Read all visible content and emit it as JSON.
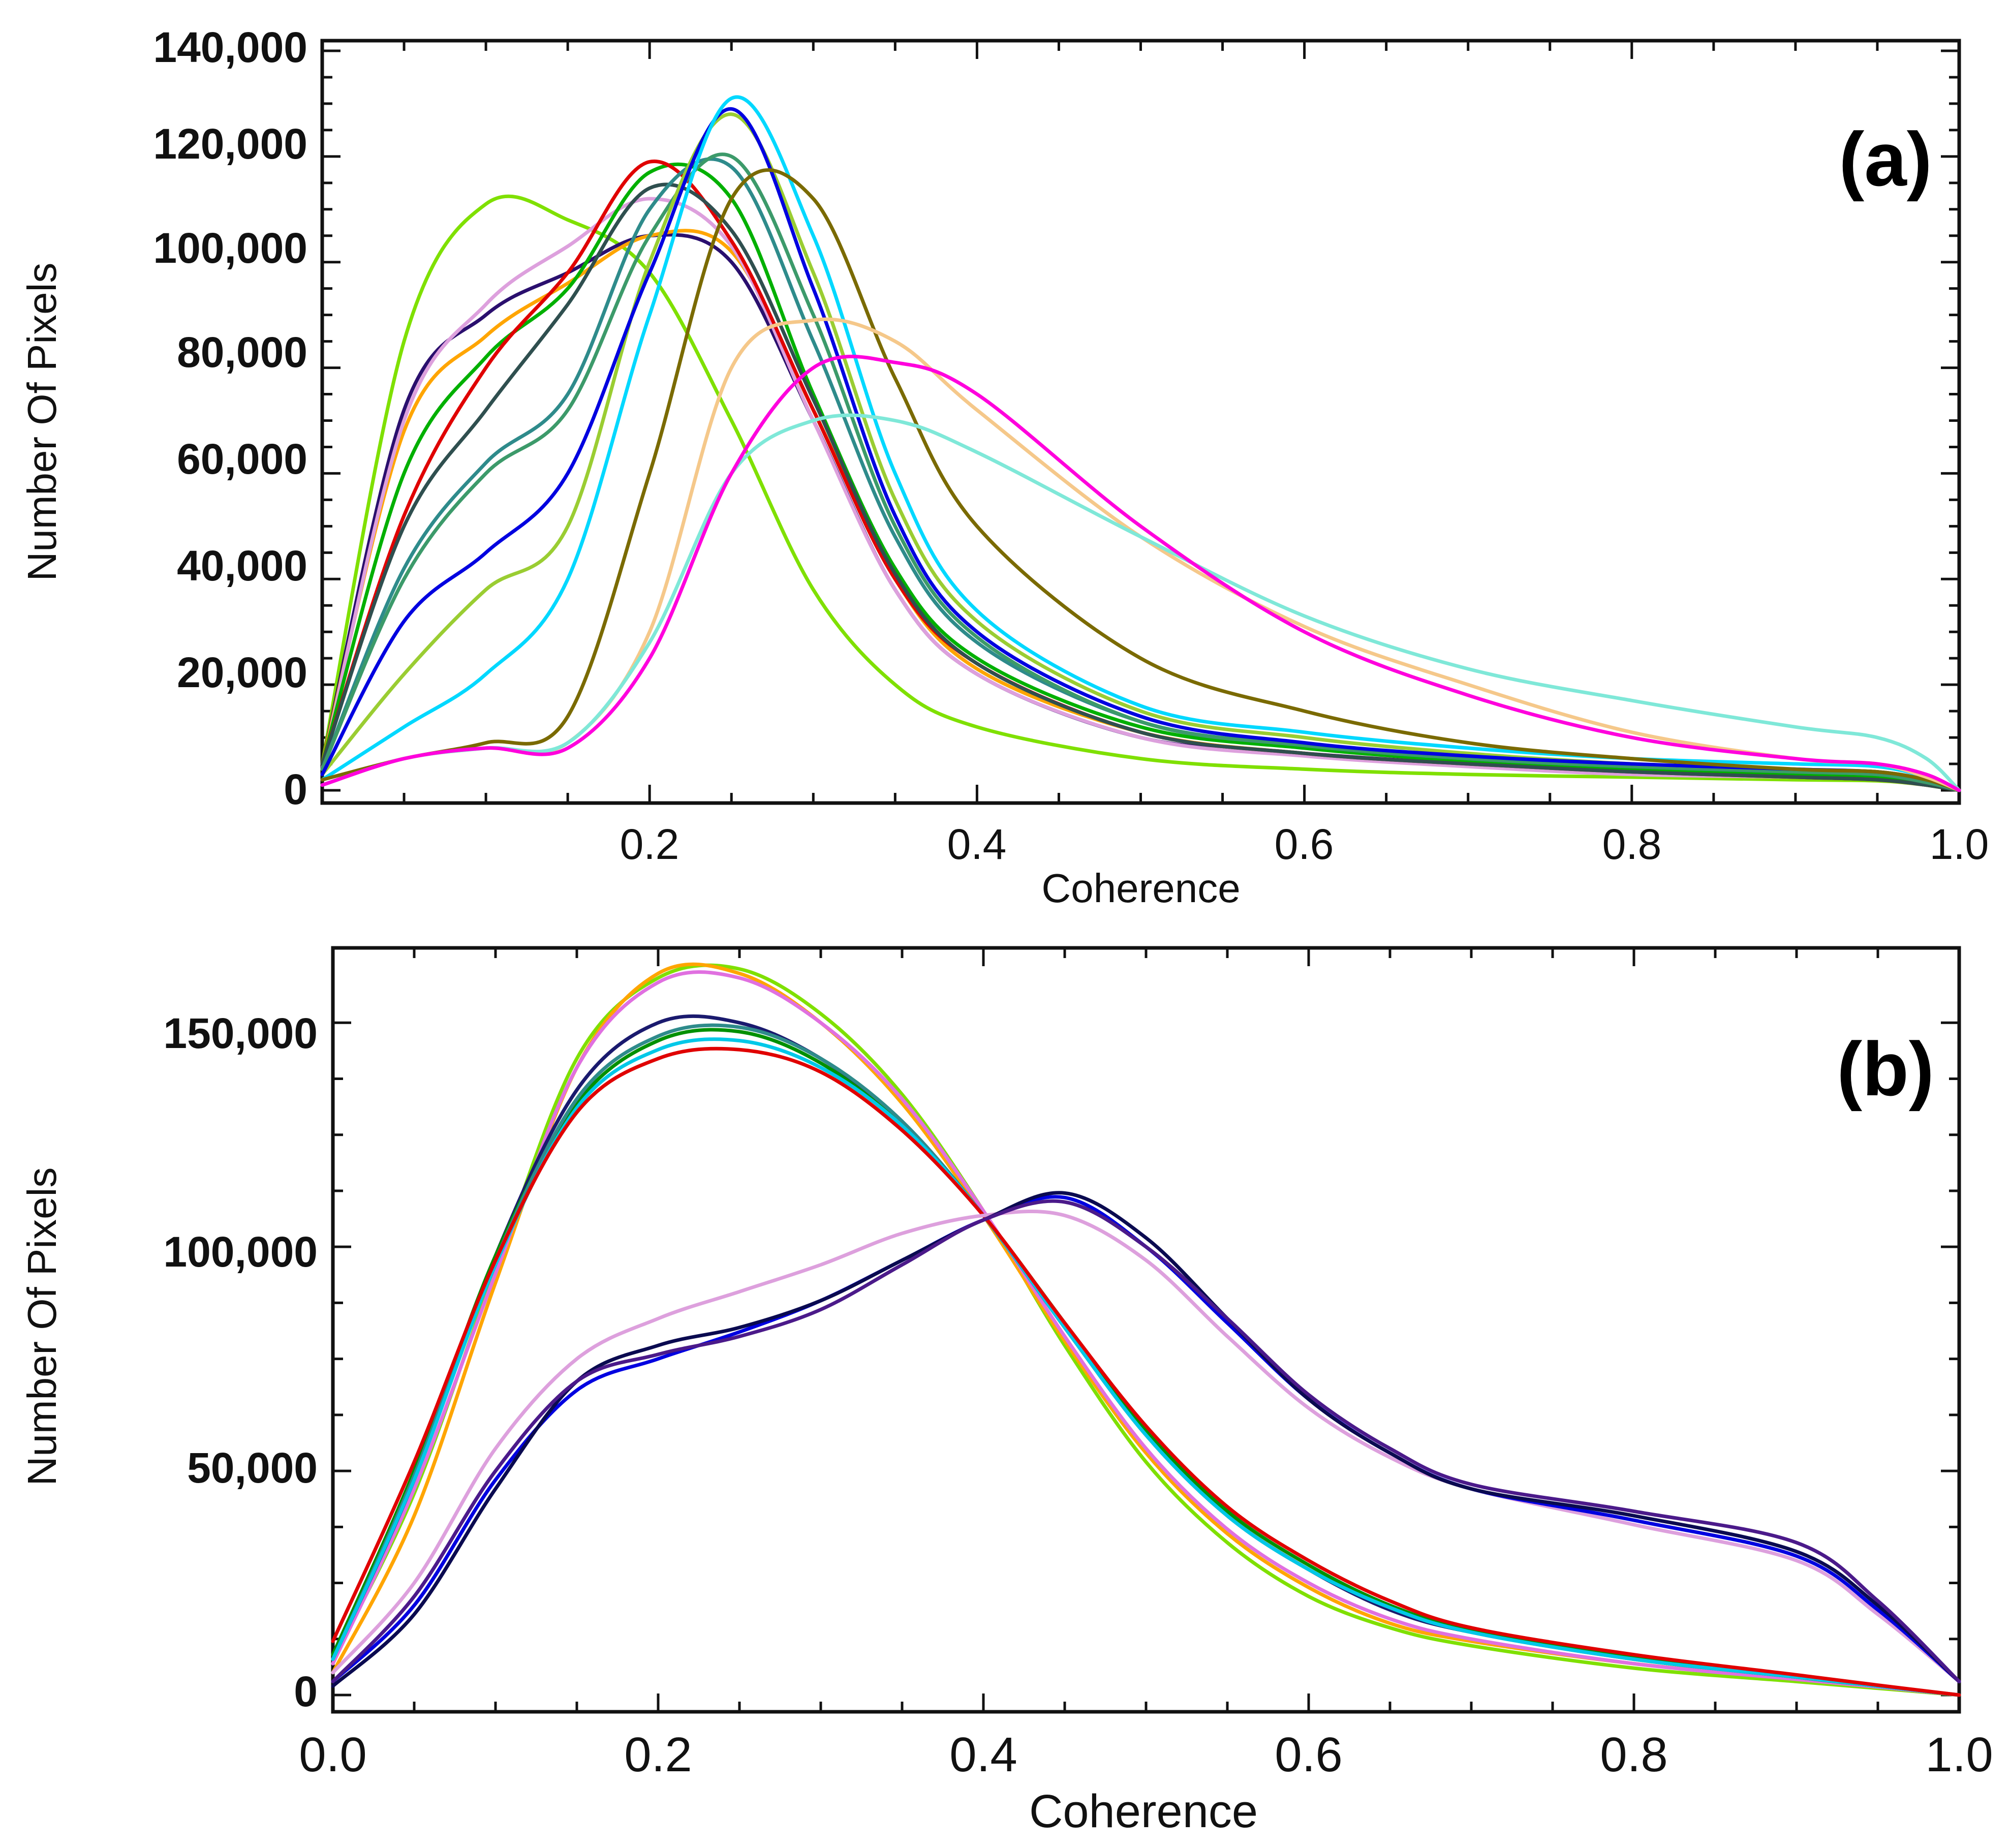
{
  "chart_data": [
    {
      "type": "line",
      "panel_label": "(a)",
      "xlabel": "Coherence",
      "ylabel": "Number Of Pixels",
      "xlim": [
        0.0,
        1.0
      ],
      "ylim": [
        0,
        140000
      ],
      "x_ticks": [
        0.2,
        0.4,
        0.6,
        0.8,
        1.0
      ],
      "x_tick_labels": [
        "0.2",
        "0.4",
        "0.6",
        "0.8",
        "1.0"
      ],
      "y_ticks": [
        0,
        20000,
        40000,
        60000,
        80000,
        100000,
        120000,
        140000
      ],
      "y_tick_labels": [
        "0",
        "20,000",
        "40,000",
        "60,000",
        "80,000",
        "100,000",
        "120,000",
        "140,000"
      ],
      "x": [
        0.0,
        0.05,
        0.1,
        0.15,
        0.2,
        0.25,
        0.3,
        0.35,
        0.4,
        0.5,
        0.6,
        0.7,
        0.8,
        0.9,
        0.95,
        0.98,
        1.0
      ],
      "series": [
        {
          "name": "chartreuse",
          "color": "#7fe000",
          "values": [
            5000,
            85000,
            111000,
            108000,
            98000,
            70000,
            38000,
            20000,
            12000,
            6000,
            4000,
            3000,
            2500,
            2000,
            1800,
            1000,
            0
          ]
        },
        {
          "name": "indigo",
          "color": "#2a0f6e",
          "values": [
            5000,
            72000,
            90000,
            98000,
            105000,
            100000,
            70000,
            38000,
            22000,
            10000,
            7000,
            5000,
            3500,
            2500,
            2000,
            1000,
            0
          ]
        },
        {
          "name": "orange",
          "color": "#ffa500",
          "values": [
            5000,
            68000,
            86000,
            96000,
            105000,
            102000,
            72000,
            40000,
            23000,
            11000,
            7000,
            5000,
            3500,
            2500,
            2000,
            1000,
            0
          ]
        },
        {
          "name": "lilac",
          "color": "#dda0dd",
          "values": [
            4000,
            70000,
            92000,
            103000,
            112000,
            103000,
            70000,
            38000,
            22000,
            10000,
            6500,
            4500,
            3000,
            2500,
            2000,
            1000,
            0
          ]
        },
        {
          "name": "green",
          "color": "#00b000",
          "values": [
            5000,
            60000,
            82000,
            95000,
            117000,
            112000,
            75000,
            42000,
            25000,
            12000,
            8000,
            5500,
            4000,
            3000,
            2500,
            1000,
            0
          ]
        },
        {
          "name": "red",
          "color": "#e00000",
          "values": [
            5000,
            52000,
            80000,
            98000,
            119000,
            104000,
            72000,
            40000,
            24000,
            11000,
            7000,
            5000,
            3500,
            2500,
            2000,
            1000,
            0
          ]
        },
        {
          "name": "dark-slate",
          "color": "#2f4f4f",
          "values": [
            5000,
            50000,
            72000,
            92000,
            114000,
            106000,
            74000,
            41000,
            24000,
            11000,
            7000,
            5000,
            3500,
            2500,
            2000,
            1000,
            0
          ]
        },
        {
          "name": "teal",
          "color": "#2e8b8b",
          "values": [
            4000,
            42000,
            62000,
            75000,
            110000,
            118000,
            85000,
            48000,
            28000,
            13000,
            8500,
            6000,
            4500,
            3500,
            3000,
            1500,
            0
          ]
        },
        {
          "name": "sea-green",
          "color": "#3c9a6a",
          "values": [
            4000,
            40000,
            60000,
            72000,
            105000,
            120000,
            90000,
            50000,
            29000,
            13000,
            8500,
            6000,
            4500,
            3500,
            3000,
            1500,
            0
          ]
        },
        {
          "name": "yellow-green",
          "color": "#9acd32",
          "values": [
            3000,
            22000,
            38000,
            50000,
            100000,
            128000,
            98000,
            55000,
            32000,
            15000,
            10000,
            7000,
            5000,
            4000,
            3500,
            2000,
            0
          ]
        },
        {
          "name": "blue",
          "color": "#0000e0",
          "values": [
            3000,
            32000,
            45000,
            60000,
            98000,
            129000,
            95000,
            52000,
            30000,
            14000,
            9000,
            6500,
            5000,
            4000,
            3500,
            2000,
            0
          ]
        },
        {
          "name": "cyan",
          "color": "#00d8ff",
          "values": [
            2000,
            12000,
            22000,
            40000,
            90000,
            131000,
            105000,
            60000,
            34000,
            16000,
            11000,
            8000,
            6000,
            5000,
            4500,
            2500,
            0
          ]
        },
        {
          "name": "olive",
          "color": "#7a6a00",
          "values": [
            2000,
            6000,
            9000,
            14000,
            60000,
            112000,
            112000,
            78000,
            50000,
            25000,
            15000,
            9000,
            6000,
            4000,
            3500,
            2000,
            0
          ]
        },
        {
          "name": "peach",
          "color": "#f5c88a",
          "values": [
            1000,
            6000,
            8000,
            9000,
            30000,
            80000,
            89000,
            85000,
            72000,
            48000,
            31000,
            20000,
            11000,
            6000,
            5000,
            2500,
            0
          ]
        },
        {
          "name": "aquamarine",
          "color": "#7fe8d8",
          "values": [
            1000,
            6000,
            8000,
            9000,
            28000,
            60000,
            70000,
            70000,
            64000,
            48000,
            33000,
            23000,
            17000,
            12000,
            10000,
            6000,
            0
          ]
        },
        {
          "name": "magenta",
          "color": "#ff00dd",
          "values": [
            1000,
            6000,
            8000,
            8000,
            25000,
            60000,
            80000,
            81000,
            75000,
            50000,
            30000,
            18000,
            10000,
            6000,
            5000,
            3000,
            0
          ]
        }
      ]
    },
    {
      "type": "line",
      "panel_label": "(b)",
      "xlabel": "Coherence",
      "ylabel": "Number Of Pixels",
      "xlim": [
        0.0,
        1.0
      ],
      "ylim": [
        0,
        165000
      ],
      "x_ticks": [
        0.0,
        0.2,
        0.4,
        0.6,
        0.8,
        1.0
      ],
      "x_tick_labels": [
        "0.0",
        "0.2",
        "0.4",
        "0.6",
        "0.8",
        "1.0"
      ],
      "y_ticks": [
        0,
        50000,
        100000,
        150000
      ],
      "y_tick_labels": [
        "0",
        "50,000",
        "100,000",
        "150,000"
      ],
      "x": [
        0.0,
        0.05,
        0.1,
        0.15,
        0.2,
        0.25,
        0.3,
        0.35,
        0.4,
        0.45,
        0.5,
        0.55,
        0.6,
        0.65,
        0.7,
        0.8,
        0.9,
        0.95,
        1.0
      ],
      "series": [
        {
          "name": "chartreuse",
          "color": "#7fe000",
          "values": [
            8000,
            45000,
            95000,
            142000,
            160000,
            162000,
            152000,
            134000,
            108000,
            78000,
            52000,
            34000,
            22000,
            15000,
            11000,
            6000,
            3000,
            1500,
            0
          ]
        },
        {
          "name": "orange",
          "color": "#ffa500",
          "values": [
            5000,
            40000,
            92000,
            140000,
            161000,
            161000,
            150000,
            132000,
            107000,
            79000,
            54000,
            36000,
            24000,
            16000,
            12000,
            7000,
            3500,
            1800,
            0
          ]
        },
        {
          "name": "orchid",
          "color": "#e070e0",
          "values": [
            7000,
            46000,
            94000,
            140000,
            159000,
            160000,
            150000,
            133000,
            108000,
            80000,
            55000,
            37000,
            25000,
            17000,
            12500,
            7000,
            3500,
            1800,
            0
          ]
        },
        {
          "name": "navy",
          "color": "#1a1a6e",
          "values": [
            8000,
            48000,
            98000,
            135000,
            150000,
            150000,
            142000,
            128000,
            107000,
            82000,
            58000,
            40000,
            28000,
            19000,
            14000,
            8000,
            4000,
            2000,
            0
          ]
        },
        {
          "name": "green",
          "color": "#009000",
          "values": [
            9000,
            50000,
            98000,
            132000,
            146000,
            148000,
            141000,
            127000,
            107000,
            83000,
            59000,
            41000,
            29000,
            20000,
            14500,
            8500,
            4000,
            2000,
            0
          ]
        },
        {
          "name": "teal",
          "color": "#2e8b8b",
          "values": [
            8000,
            49000,
            97000,
            133000,
            147000,
            149000,
            142000,
            128000,
            107000,
            82000,
            58000,
            40000,
            28000,
            19500,
            14000,
            8000,
            4000,
            2000,
            0
          ]
        },
        {
          "name": "cyan",
          "color": "#00c8e8",
          "values": [
            8000,
            48000,
            96000,
            131000,
            144000,
            146000,
            140000,
            127000,
            107000,
            82000,
            58000,
            40000,
            28000,
            19500,
            14000,
            8000,
            4000,
            2000,
            0
          ]
        },
        {
          "name": "red",
          "color": "#e00000",
          "values": [
            12000,
            52000,
            97000,
            130000,
            142000,
            144000,
            139000,
            126000,
            107000,
            83000,
            60000,
            42000,
            30000,
            21000,
            15000,
            9000,
            4500,
            2200,
            0
          ]
        },
        {
          "name": "plum",
          "color": "#dda0dd",
          "values": [
            5000,
            25000,
            55000,
            75000,
            84000,
            90000,
            96000,
            103000,
            107000,
            107000,
            97000,
            80000,
            64000,
            53000,
            46000,
            38000,
            30000,
            18000,
            3000
          ]
        },
        {
          "name": "blue",
          "color": "#0000e0",
          "values": [
            3000,
            20000,
            48000,
            68000,
            75000,
            81000,
            88000,
            97000,
            106000,
            111000,
            100000,
            83000,
            66000,
            54000,
            46000,
            39000,
            31000,
            19000,
            3000
          ]
        },
        {
          "name": "dark-navy",
          "color": "#0a0a50",
          "values": [
            2000,
            18000,
            46000,
            70000,
            78000,
            82000,
            88000,
            97000,
            106000,
            112000,
            102000,
            84000,
            66000,
            54000,
            46000,
            40000,
            32000,
            20000,
            3000
          ]
        },
        {
          "name": "purple",
          "color": "#4b1a8a",
          "values": [
            3000,
            22000,
            50000,
            70000,
            76000,
            80000,
            86000,
            96000,
            106000,
            110000,
            100000,
            84000,
            67000,
            55000,
            47000,
            41000,
            34000,
            21000,
            3000
          ]
        }
      ]
    }
  ]
}
